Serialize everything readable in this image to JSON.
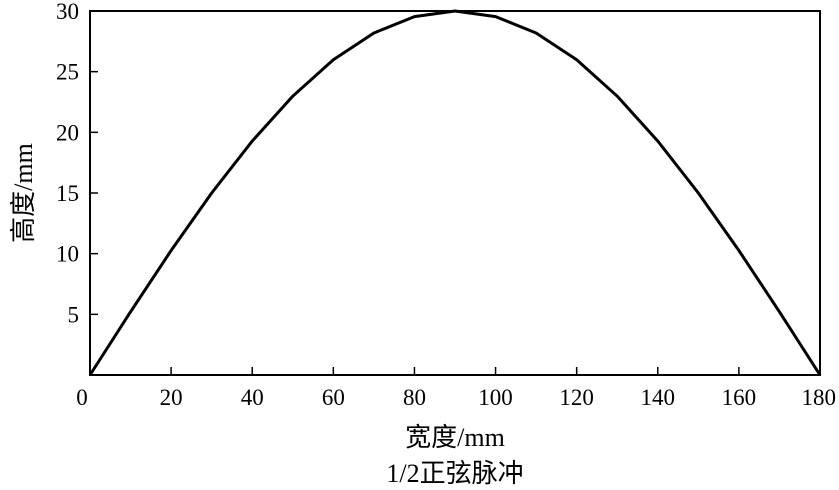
{
  "chart_data": {
    "type": "line",
    "title": "",
    "caption": "1/2正弦脉冲",
    "xlabel": "宽度/mm",
    "ylabel": "高度/mm",
    "xlim": [
      0,
      180
    ],
    "ylim": [
      0,
      30
    ],
    "xticks": [
      0,
      20,
      40,
      60,
      80,
      100,
      120,
      140,
      160,
      180
    ],
    "yticks": [
      5,
      10,
      15,
      20,
      25,
      30
    ],
    "x_tick_labels": [
      "0",
      "20",
      "40",
      "60",
      "80",
      "100",
      "120",
      "140",
      "160",
      "180"
    ],
    "y_tick_labels": [
      "5",
      "10",
      "15",
      "20",
      "25",
      "30"
    ],
    "grid": false,
    "legend": "none",
    "series": [
      {
        "x": [
          0,
          10,
          20,
          30,
          40,
          50,
          60,
          70,
          80,
          90,
          100,
          110,
          120,
          130,
          140,
          150,
          160,
          170,
          180
        ],
        "y": [
          0,
          5.21,
          10.26,
          15.0,
          19.28,
          22.98,
          25.98,
          28.19,
          29.54,
          30.0,
          29.54,
          28.19,
          25.98,
          22.98,
          19.28,
          15.0,
          10.26,
          5.21,
          0
        ],
        "color": "#000000"
      }
    ]
  }
}
